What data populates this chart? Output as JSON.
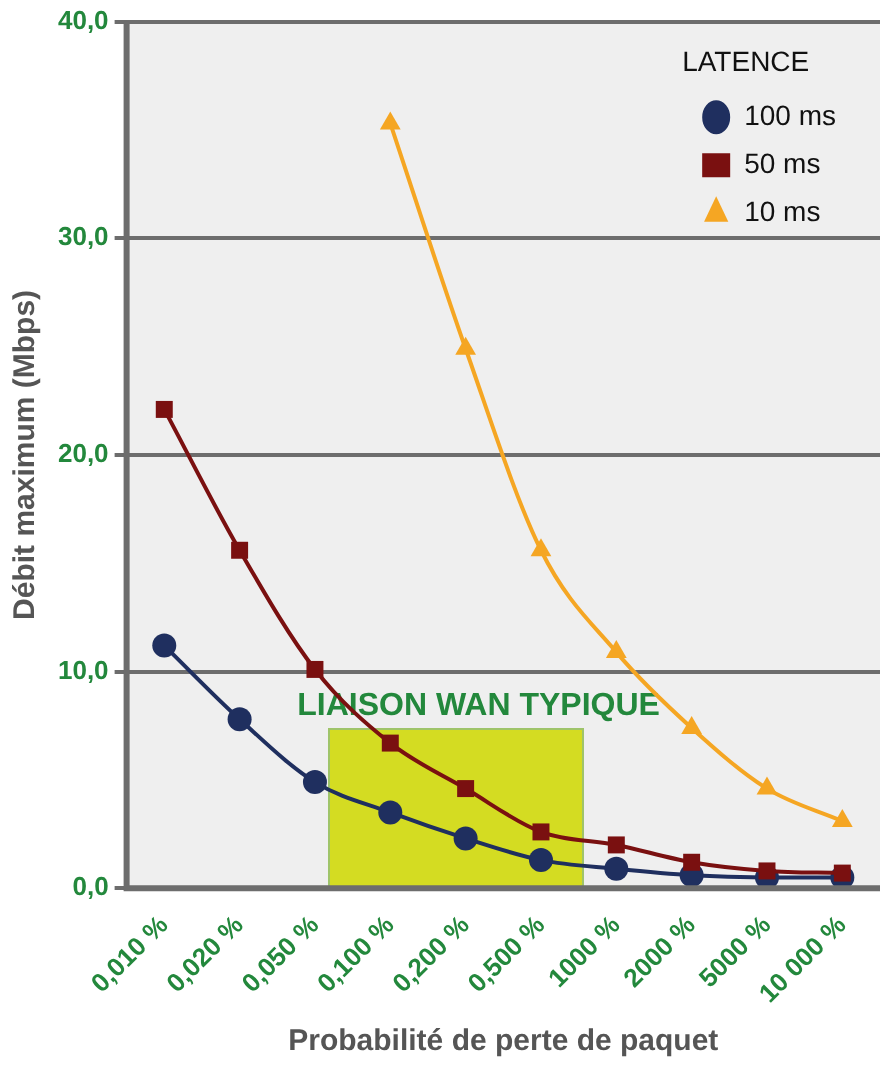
{
  "chart_data": {
    "type": "line",
    "xlabel": "Probabilité de perte de paquet",
    "ylabel": "Débit maximum (Mbps)",
    "legend_title": "LATENCE",
    "categories": [
      "0,010 %",
      "0,020 %",
      "0,050 %",
      "0,100 %",
      "0,200 %",
      "0,500 %",
      "1000 %",
      "2000 %",
      "5000 %",
      "10 000 %"
    ],
    "series": [
      {
        "name": "100 ms",
        "color": "#1f2f5f",
        "marker": "circle",
        "values": [
          11.2,
          7.8,
          4.9,
          3.5,
          2.3,
          1.3,
          0.9,
          0.6,
          0.5,
          0.5
        ]
      },
      {
        "name": "50 ms",
        "color": "#7a1010",
        "marker": "square",
        "values": [
          22.1,
          15.6,
          10.1,
          6.7,
          4.6,
          2.6,
          2.0,
          1.2,
          0.8,
          0.7
        ]
      },
      {
        "name": "10 ms",
        "color": "#f5a623",
        "marker": "triangle",
        "values": [
          null,
          null,
          null,
          35.3,
          24.9,
          15.6,
          10.9,
          7.4,
          4.6,
          3.1
        ]
      }
    ],
    "ylim": [
      0,
      40
    ],
    "yticks": [
      {
        "value": 0,
        "label": "0,0"
      },
      {
        "value": 10,
        "label": "10,0"
      },
      {
        "value": 20,
        "label": "20,0"
      },
      {
        "value": 30,
        "label": "30,0"
      },
      {
        "value": 40,
        "label": "40,0"
      }
    ],
    "grid": "y",
    "legend": "top right",
    "annotations": [
      "LIAISON WAN TYPIQUE"
    ]
  }
}
